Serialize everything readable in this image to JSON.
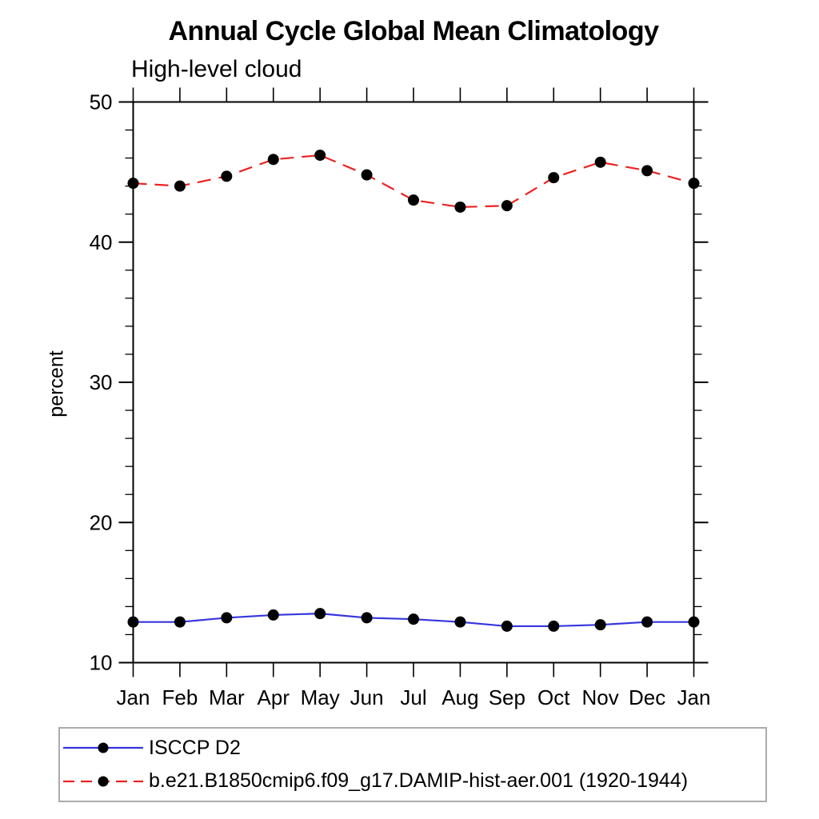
{
  "chart_data": {
    "type": "line",
    "title": "Annual Cycle Global Mean Climatology",
    "subtitle": "High-level cloud",
    "xlabel": "",
    "ylabel": "percent",
    "categories": [
      "Jan",
      "Feb",
      "Mar",
      "Apr",
      "May",
      "Jun",
      "Jul",
      "Aug",
      "Sep",
      "Oct",
      "Nov",
      "Dec",
      "Jan"
    ],
    "ylim": [
      10,
      50
    ],
    "y_ticks": [
      10,
      20,
      30,
      40,
      50
    ],
    "y_minor_step": 2,
    "grid": false,
    "legend_position": "bottom-left-box",
    "axis_color": "#000000",
    "marker_color": "#000000",
    "legend_border_color": "#ababab",
    "series": [
      {
        "name": "ISCCP D2",
        "color": "#3535dd",
        "line_style": "solid",
        "marker": "circle",
        "values": [
          12.9,
          12.9,
          13.2,
          13.4,
          13.5,
          13.2,
          13.1,
          12.9,
          12.6,
          12.6,
          12.7,
          12.9,
          12.9
        ]
      },
      {
        "name": "b.e21.B1850cmip6.f09_g17.DAMIP-hist-aer.001 (1920-1944)",
        "color": "#ee2222",
        "line_style": "dashed",
        "marker": "circle",
        "values": [
          44.2,
          44.0,
          44.7,
          45.9,
          46.2,
          44.8,
          43.0,
          42.5,
          42.6,
          44.6,
          45.7,
          45.1,
          44.2
        ]
      }
    ]
  }
}
